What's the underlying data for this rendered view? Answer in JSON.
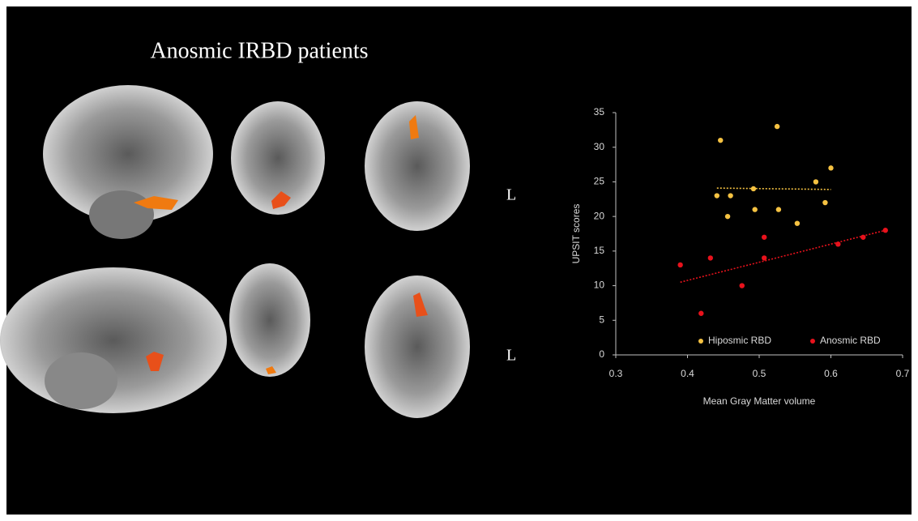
{
  "figure": {
    "title": "Anosmic IRBD patients",
    "side_labels": [
      "L",
      "L"
    ]
  },
  "chart_data": {
    "type": "scatter",
    "x_label": "Mean Gray Matter volume",
    "y_label": "UPSIT scores",
    "xlim": [
      0.3,
      0.7
    ],
    "xticks": [
      0.3,
      0.4,
      0.5,
      0.6,
      0.7
    ],
    "ylim": [
      0,
      35
    ],
    "yticks": [
      0,
      5,
      10,
      15,
      20,
      25,
      30,
      35
    ],
    "legend": "bottom",
    "series": [
      {
        "name": "Hiposmic RBD",
        "color": "#f5c242",
        "x": [
          0.446,
          0.525,
          0.441,
          0.46,
          0.456,
          0.492,
          0.494,
          0.527,
          0.553,
          0.579,
          0.6,
          0.592
        ],
        "values": [
          31,
          33,
          23,
          23,
          20,
          24,
          21,
          21,
          19,
          25,
          27,
          22
        ],
        "trendline": {
          "x": [
            0.441,
            0.6
          ],
          "values": [
            24.1,
            23.9
          ]
        }
      },
      {
        "name": "Anosmic RBD",
        "color": "#e8121c",
        "x": [
          0.39,
          0.432,
          0.419,
          0.476,
          0.507,
          0.507,
          0.61,
          0.645,
          0.676
        ],
        "values": [
          13,
          14,
          6,
          10,
          17,
          14,
          16,
          17,
          18
        ],
        "trendline": {
          "x": [
            0.39,
            0.676
          ],
          "values": [
            10.5,
            18
          ]
        }
      }
    ]
  }
}
